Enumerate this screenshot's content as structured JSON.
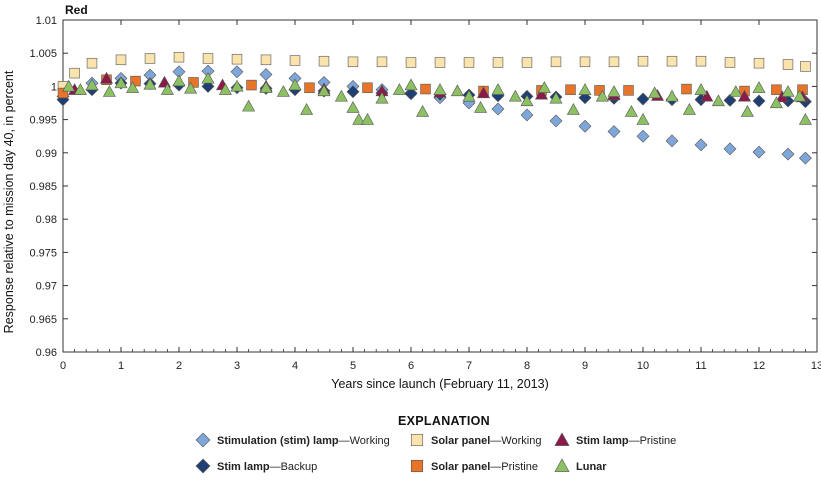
{
  "chart_data": {
    "type": "scatter",
    "title": "Red",
    "xlabel": "Years since launch (February 11, 2013)",
    "ylabel": "Response relative to mission day 40, in percent",
    "xlim": [
      0,
      13
    ],
    "ylim": [
      0.96,
      1.01
    ],
    "x_ticks": [
      "0",
      "1",
      "2",
      "3",
      "4",
      "5",
      "6",
      "7",
      "8",
      "9",
      "10",
      "11",
      "12",
      "13"
    ],
    "y_ticks": [
      "0.96",
      "0.965",
      "0.97",
      "0.975",
      "0.98",
      "0.985",
      "0.99",
      "0.995",
      "1",
      "1.005",
      "1.01"
    ],
    "grid": false,
    "legend": {
      "title": "EXPLANATION",
      "placement": "bottom",
      "entries": [
        {
          "bold": "Stimulation (stim) lamp",
          "rest": "—Working",
          "series": "stim-working"
        },
        {
          "bold": "Solar panel",
          "rest": "—Working",
          "series": "solar-working"
        },
        {
          "bold": "Stim lamp",
          "rest": "—Pristine",
          "series": "stim-pristine"
        },
        {
          "bold": "Stim lamp",
          "rest": "—Backup",
          "series": "stim-backup"
        },
        {
          "bold": "Solar panel",
          "rest": "—Pristine",
          "series": "solar-pristine"
        },
        {
          "bold": "Lunar",
          "rest": "",
          "series": "lunar"
        }
      ]
    },
    "series": [
      {
        "id": "stim-working",
        "marker": "diamond",
        "color": "#7fa6d9",
        "points": [
          [
            0,
            0.9985
          ],
          [
            0.5,
            1.0005
          ],
          [
            1,
            1.0012
          ],
          [
            1.5,
            1.0017
          ],
          [
            2,
            1.0022
          ],
          [
            2.5,
            1.0023
          ],
          [
            3,
            1.0022
          ],
          [
            3.5,
            1.0018
          ],
          [
            4,
            1.0012
          ],
          [
            4.5,
            1.0006
          ],
          [
            5,
            1.0
          ],
          [
            5.5,
            0.9995
          ],
          [
            6,
            0.999
          ],
          [
            6.5,
            0.9983
          ],
          [
            7,
            0.9975
          ],
          [
            7.5,
            0.9966
          ],
          [
            8,
            0.9957
          ],
          [
            8.5,
            0.9948
          ],
          [
            9,
            0.994
          ],
          [
            9.5,
            0.9932
          ],
          [
            10,
            0.9925
          ],
          [
            10.5,
            0.9918
          ],
          [
            11,
            0.9912
          ],
          [
            11.5,
            0.9906
          ],
          [
            12,
            0.9901
          ],
          [
            12.5,
            0.9898
          ],
          [
            12.8,
            0.9892
          ]
        ]
      },
      {
        "id": "stim-backup",
        "marker": "diamond",
        "color": "#1f3f73",
        "points": [
          [
            0,
            0.998
          ],
          [
            0.5,
            0.9995
          ],
          [
            1,
            1.0005
          ],
          [
            1.5,
            1.0004
          ],
          [
            2,
            1.0002
          ],
          [
            2.5,
            1.0
          ],
          [
            3,
            0.9998
          ],
          [
            3.5,
            0.9997
          ],
          [
            4,
            0.9995
          ],
          [
            4.5,
            0.9993
          ],
          [
            5,
            0.9992
          ],
          [
            5.5,
            0.999
          ],
          [
            6,
            0.9989
          ],
          [
            6.5,
            0.9988
          ],
          [
            7,
            0.9987
          ],
          [
            7.5,
            0.9986
          ],
          [
            8,
            0.9985
          ],
          [
            8.5,
            0.9984
          ],
          [
            9,
            0.9983
          ],
          [
            9.5,
            0.9982
          ],
          [
            10,
            0.9981
          ],
          [
            10.5,
            0.998
          ],
          [
            11,
            0.998
          ],
          [
            11.5,
            0.9979
          ],
          [
            12,
            0.9978
          ],
          [
            12.5,
            0.9978
          ],
          [
            12.8,
            0.9977
          ]
        ]
      },
      {
        "id": "solar-working",
        "marker": "square",
        "color": "#fbe3ad",
        "points": [
          [
            0,
            1.0
          ],
          [
            0.2,
            1.002
          ],
          [
            0.5,
            1.0035
          ],
          [
            1,
            1.004
          ],
          [
            1.5,
            1.0042
          ],
          [
            2,
            1.0044
          ],
          [
            2.5,
            1.0042
          ],
          [
            3,
            1.0041
          ],
          [
            3.5,
            1.004
          ],
          [
            4,
            1.0039
          ],
          [
            4.5,
            1.0038
          ],
          [
            5,
            1.0037
          ],
          [
            5.5,
            1.0037
          ],
          [
            6,
            1.0036
          ],
          [
            6.5,
            1.0036
          ],
          [
            7,
            1.0036
          ],
          [
            7.5,
            1.0036
          ],
          [
            8,
            1.0036
          ],
          [
            8.5,
            1.0037
          ],
          [
            9,
            1.0037
          ],
          [
            9.5,
            1.0037
          ],
          [
            10,
            1.0038
          ],
          [
            10.5,
            1.0038
          ],
          [
            11,
            1.0038
          ],
          [
            11.5,
            1.0036
          ],
          [
            12,
            1.0035
          ],
          [
            12.5,
            1.0033
          ],
          [
            12.8,
            1.003
          ]
        ]
      },
      {
        "id": "solar-pristine",
        "marker": "square",
        "color": "#e8742a",
        "points": [
          [
            0,
            0.999
          ],
          [
            0.75,
            1.001
          ],
          [
            1.25,
            1.0008
          ],
          [
            2.25,
            1.0006
          ],
          [
            3.25,
            1.0002
          ],
          [
            4.25,
            0.9998
          ],
          [
            5.25,
            0.9998
          ],
          [
            6.25,
            0.9996
          ],
          [
            7.25,
            0.9993
          ],
          [
            8.25,
            0.9994
          ],
          [
            8.75,
            0.9995
          ],
          [
            9.25,
            0.9994
          ],
          [
            9.75,
            0.9994
          ],
          [
            10.75,
            0.9996
          ],
          [
            11.75,
            0.9993
          ],
          [
            12.3,
            0.9995
          ],
          [
            12.75,
            0.9995
          ]
        ]
      },
      {
        "id": "stim-pristine",
        "marker": "triangle",
        "color": "#8b1a4a",
        "points": [
          [
            0.2,
            0.9995
          ],
          [
            0.75,
            1.0012
          ],
          [
            1.75,
            1.0006
          ],
          [
            2.75,
            1.0002
          ],
          [
            3.5,
            1.0
          ],
          [
            4.5,
            0.9996
          ],
          [
            5.5,
            0.9993
          ],
          [
            6.5,
            0.9991
          ],
          [
            7.25,
            0.999
          ],
          [
            8.25,
            0.9988
          ],
          [
            9.5,
            0.9987
          ],
          [
            10.25,
            0.9986
          ],
          [
            11.1,
            0.9985
          ],
          [
            11.75,
            0.9985
          ],
          [
            12.4,
            0.9984
          ],
          [
            12.75,
            0.9984
          ]
        ]
      },
      {
        "id": "lunar",
        "marker": "triangle",
        "color": "#8cc063",
        "points": [
          [
            0.1,
            1.0
          ],
          [
            0.3,
            0.9995
          ],
          [
            0.5,
            1.0002
          ],
          [
            0.8,
            0.9992
          ],
          [
            1.0,
            1.0005
          ],
          [
            1.2,
            0.9998
          ],
          [
            1.5,
            1.0003
          ],
          [
            1.8,
            0.9995
          ],
          [
            2.0,
            1.0008
          ],
          [
            2.2,
            0.9997
          ],
          [
            2.5,
            1.0012
          ],
          [
            2.8,
            0.9995
          ],
          [
            3.0,
            1.0
          ],
          [
            3.2,
            0.997
          ],
          [
            3.5,
            0.9998
          ],
          [
            3.8,
            0.9992
          ],
          [
            4.0,
            1.0002
          ],
          [
            4.2,
            0.9965
          ],
          [
            4.5,
            0.9993
          ],
          [
            4.8,
            0.9985
          ],
          [
            5.0,
            0.9968
          ],
          [
            5.1,
            0.995
          ],
          [
            5.25,
            0.995
          ],
          [
            5.5,
            0.9982
          ],
          [
            5.8,
            0.9995
          ],
          [
            6.0,
            1.0002
          ],
          [
            6.2,
            0.9962
          ],
          [
            6.5,
            0.9995
          ],
          [
            6.8,
            0.9993
          ],
          [
            7.0,
            0.9985
          ],
          [
            7.2,
            0.9968
          ],
          [
            7.5,
            0.9995
          ],
          [
            7.8,
            0.9985
          ],
          [
            8.0,
            0.9978
          ],
          [
            8.3,
            0.9998
          ],
          [
            8.5,
            0.9982
          ],
          [
            8.8,
            0.9965
          ],
          [
            9.0,
            0.9995
          ],
          [
            9.3,
            0.9985
          ],
          [
            9.5,
            0.9992
          ],
          [
            9.8,
            0.9962
          ],
          [
            10.0,
            0.995
          ],
          [
            10.2,
            0.999
          ],
          [
            10.5,
            0.9985
          ],
          [
            10.8,
            0.9965
          ],
          [
            11.0,
            0.9995
          ],
          [
            11.3,
            0.9978
          ],
          [
            11.6,
            0.9992
          ],
          [
            11.8,
            0.9962
          ],
          [
            12.0,
            0.9998
          ],
          [
            12.3,
            0.9975
          ],
          [
            12.5,
            0.9992
          ],
          [
            12.7,
            0.9985
          ],
          [
            12.8,
            0.995
          ]
        ]
      }
    ]
  }
}
